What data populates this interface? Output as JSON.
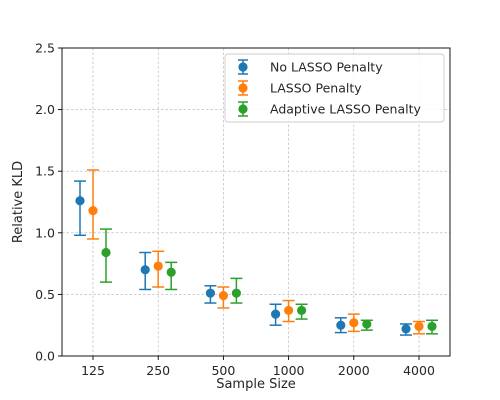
{
  "chart_data": {
    "type": "scatter",
    "subtype": "errorbar",
    "title": "",
    "xlabel": "Sample Size",
    "ylabel": "Relative KLD",
    "categories": [
      "125",
      "250",
      "500",
      "1000",
      "2000",
      "4000"
    ],
    "ylim": [
      0.0,
      2.5
    ],
    "yticks": [
      "0.0",
      "0.5",
      "1.0",
      "1.5",
      "2.0",
      "2.5"
    ],
    "grid": true,
    "legend_position": "top-right",
    "series": [
      {
        "name": "No LASSO Penalty",
        "color": "#1f77b4",
        "values": [
          1.26,
          0.7,
          0.51,
          0.34,
          0.25,
          0.22
        ],
        "lower": [
          0.98,
          0.54,
          0.43,
          0.25,
          0.19,
          0.17
        ],
        "upper": [
          1.42,
          0.84,
          0.57,
          0.42,
          0.31,
          0.26
        ]
      },
      {
        "name": "LASSO Penalty",
        "color": "#ff7f0e",
        "values": [
          1.18,
          0.73,
          0.49,
          0.37,
          0.27,
          0.24
        ],
        "lower": [
          0.95,
          0.56,
          0.39,
          0.28,
          0.2,
          0.18
        ],
        "upper": [
          1.51,
          0.85,
          0.56,
          0.45,
          0.34,
          0.28
        ]
      },
      {
        "name": "Adaptive LASSO Penalty",
        "color": "#2ca02c",
        "values": [
          0.84,
          0.68,
          0.51,
          0.37,
          0.26,
          0.24
        ],
        "lower": [
          0.6,
          0.54,
          0.43,
          0.3,
          0.21,
          0.18
        ],
        "upper": [
          1.03,
          0.76,
          0.63,
          0.42,
          0.29,
          0.29
        ]
      }
    ]
  }
}
